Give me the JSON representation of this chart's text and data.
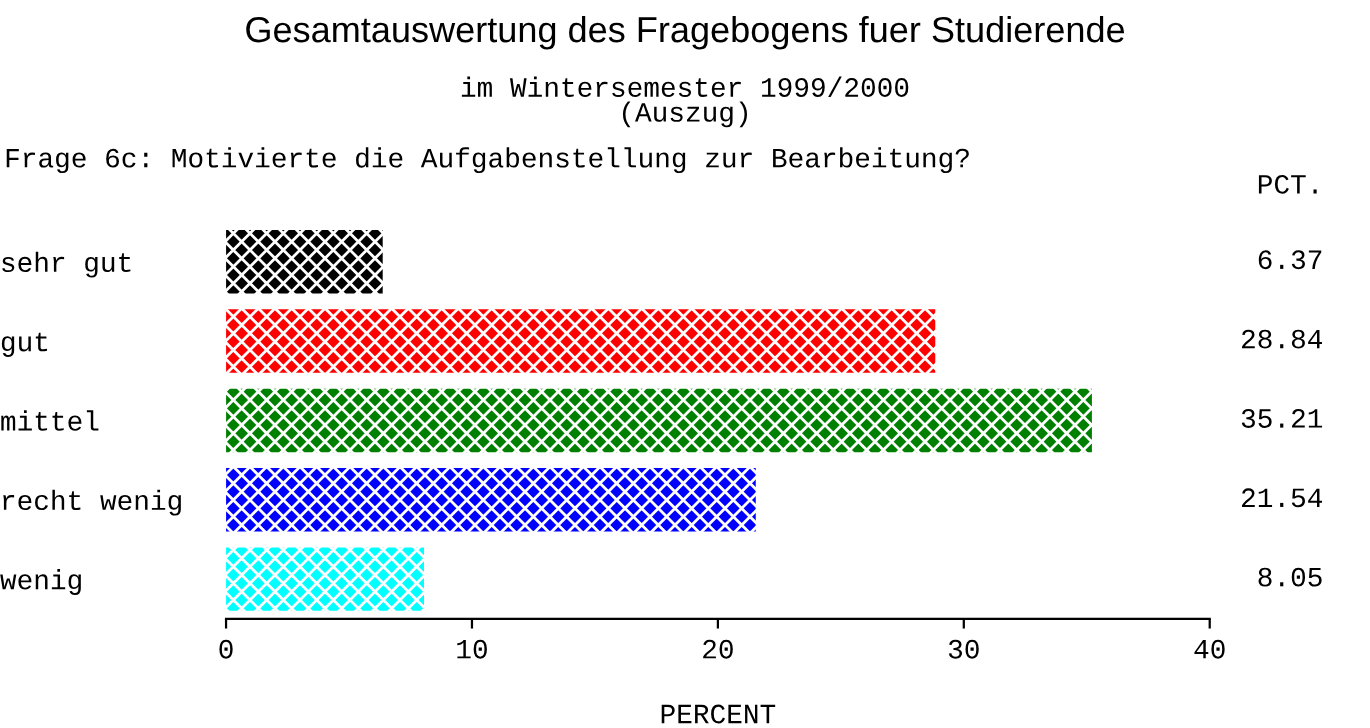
{
  "chart_data": {
    "type": "bar",
    "orientation": "horizontal",
    "title": "Gesamtauswertung des Fragebogens fuer Studierende",
    "subtitle": "im Wintersemester 1999/2000\n(Auszug)",
    "annotations": [
      "Frage 6c: Motivierte die Aufgabenstellung zur Bearbeitung?",
      "PCT."
    ],
    "categories": [
      "sehr gut",
      "gut",
      "mittel",
      "recht wenig",
      "wenig"
    ],
    "values": [
      6.37,
      28.84,
      35.21,
      21.54,
      8.05
    ],
    "colors": [
      "#000000",
      "#ff0000",
      "#008000",
      "#0000ff",
      "#00ffff"
    ],
    "value_labels": [
      "6.37",
      "28.84",
      "35.21",
      "21.54",
      "8.05"
    ],
    "xlabel": "PERCENT",
    "xlim": [
      0,
      40
    ],
    "xticks": [
      0,
      10,
      20,
      30,
      40
    ],
    "grid": false,
    "legend": false
  }
}
